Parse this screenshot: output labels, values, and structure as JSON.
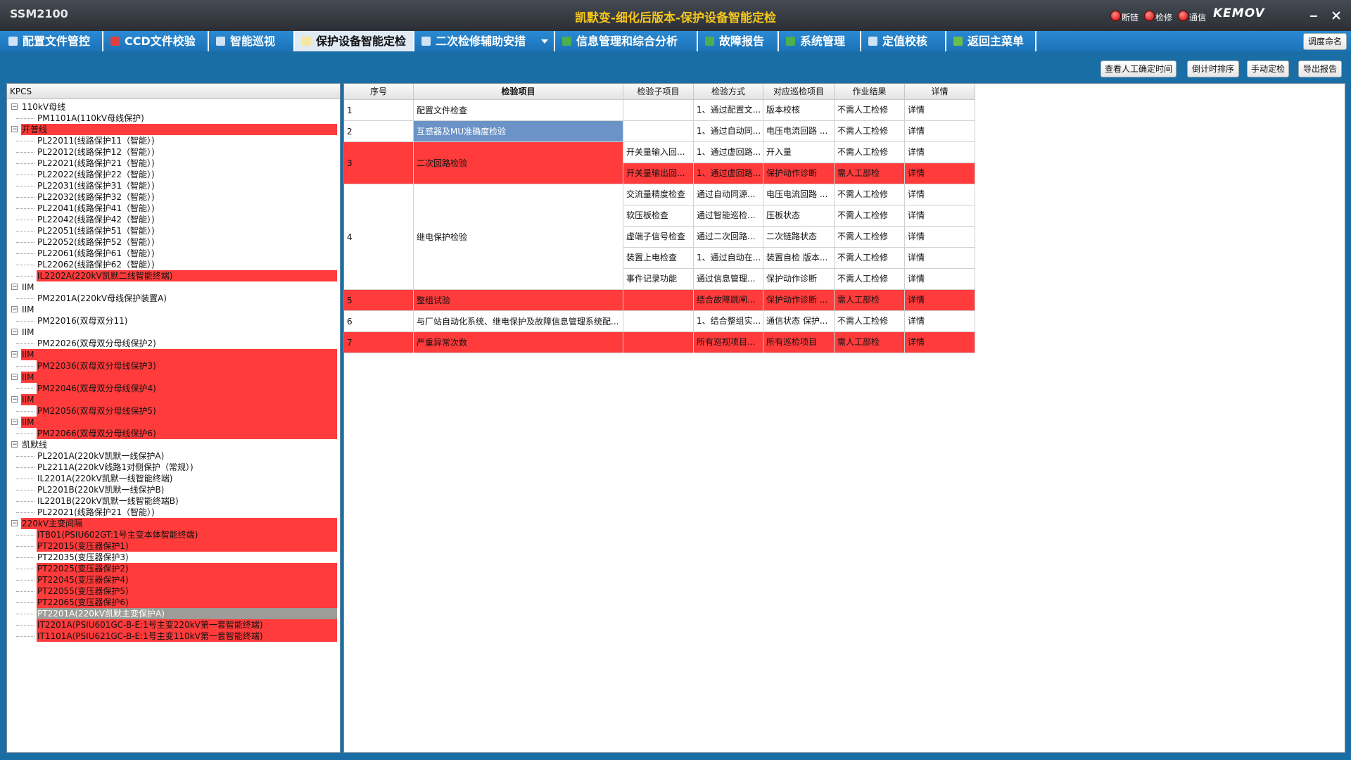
{
  "header": {
    "app_name": "SSM2100",
    "title": "凯默变-细化后版本-保护设备智能定检",
    "status": [
      "断链",
      "检修",
      "通信"
    ],
    "logo": "KEMOV"
  },
  "menu": {
    "items": [
      "配置文件管控",
      "CCD文件校验",
      "智能巡视",
      "保护设备智能定检",
      "二次检修辅助安措",
      "信息管理和综合分析",
      "故障报告",
      "系统管理",
      "定值校核",
      "返回主菜单"
    ],
    "active": 3,
    "right_button": "调度命名"
  },
  "toolbar": {
    "buttons": [
      "查看人工确定时间",
      "倒计时排序",
      "手动定检",
      "导出报告"
    ]
  },
  "tree": {
    "header": "KPCS",
    "nodes": [
      {
        "level": 0,
        "text": "110kV母线"
      },
      {
        "level": 1,
        "text": "PM1101A(110kV母线保护)"
      },
      {
        "level": 0,
        "text": "开普线",
        "alert": true
      },
      {
        "level": 1,
        "text": "PL22011(线路保护11（智能）)"
      },
      {
        "level": 1,
        "text": "PL22012(线路保护12（智能）)"
      },
      {
        "level": 1,
        "text": "PL22021(线路保护21（智能）)"
      },
      {
        "level": 1,
        "text": "PL22022(线路保护22（智能）)"
      },
      {
        "level": 1,
        "text": "PL22031(线路保护31（智能）)"
      },
      {
        "level": 1,
        "text": "PL22032(线路保护32（智能）)"
      },
      {
        "level": 1,
        "text": "PL22041(线路保护41（智能）)"
      },
      {
        "level": 1,
        "text": "PL22042(线路保护42（智能）)"
      },
      {
        "level": 1,
        "text": "PL22051(线路保护51（智能）)"
      },
      {
        "level": 1,
        "text": "PL22052(线路保护52（智能）)"
      },
      {
        "level": 1,
        "text": "PL22061(线路保护61（智能）)"
      },
      {
        "level": 1,
        "text": "PL22062(线路保护62（智能）)"
      },
      {
        "level": 1,
        "text": "IL2202A(220kV凯默二线智能终端)",
        "alert": true
      },
      {
        "level": 0,
        "text": "IIM"
      },
      {
        "level": 1,
        "text": "PM2201A(220kV母线保护装置A)"
      },
      {
        "level": 0,
        "text": "IIM"
      },
      {
        "level": 1,
        "text": "PM22016(双母双分11)"
      },
      {
        "level": 0,
        "text": "IIM"
      },
      {
        "level": 1,
        "text": "PM22026(双母双分母线保护2)"
      },
      {
        "level": 0,
        "text": "IIM",
        "alert": true
      },
      {
        "level": 1,
        "text": "PM22036(双母双分母线保护3)",
        "alert": true
      },
      {
        "level": 0,
        "text": "IIM",
        "alert": true
      },
      {
        "level": 1,
        "text": "PM22046(双母双分母线保护4)",
        "alert": true
      },
      {
        "level": 0,
        "text": "IIM",
        "alert": true
      },
      {
        "level": 1,
        "text": "PM22056(双母双分母线保护5)",
        "alert": true
      },
      {
        "level": 0,
        "text": "IIM",
        "alert": true
      },
      {
        "level": 1,
        "text": "PM22066(双母双分母线保护6)",
        "alert": true
      },
      {
        "level": 0,
        "text": "凯默线"
      },
      {
        "level": 1,
        "text": "PL2201A(220kV凯默一线保护A)"
      },
      {
        "level": 1,
        "text": "PL2211A(220kV线路1对侧保护（常规）)"
      },
      {
        "level": 1,
        "text": "IL2201A(220kV凯默一线智能终端)"
      },
      {
        "level": 1,
        "text": "PL2201B(220kV凯默一线保护B)"
      },
      {
        "level": 1,
        "text": "IL2201B(220kV凯默一线智能终端B)"
      },
      {
        "level": 1,
        "text": "PL22021(线路保护21（智能）)"
      },
      {
        "level": 0,
        "text": "220kV主变间隔",
        "alert": true
      },
      {
        "level": 1,
        "text": "ITB01(PSIU602GT:1号主变本体智能终端)",
        "alert": true
      },
      {
        "level": 1,
        "text": "PT22015(变压器保护1)",
        "alert": true
      },
      {
        "level": 1,
        "text": "PT22035(变压器保护3)"
      },
      {
        "level": 1,
        "text": "PT22025(变压器保护2)",
        "alert": true
      },
      {
        "level": 1,
        "text": "PT22045(变压器保护4)",
        "alert": true
      },
      {
        "level": 1,
        "text": "PT22055(变压器保护5)",
        "alert": true
      },
      {
        "level": 1,
        "text": "PT22065(变压器保护6)",
        "alert": true
      },
      {
        "level": 1,
        "text": "PT2201A(220kV凯默主变保护A)",
        "selected": true
      },
      {
        "level": 1,
        "text": "IT2201A(PSIU601GC-B-E:1号主变220kV第一套智能终端)",
        "alert": true
      },
      {
        "level": 1,
        "text": "IT1101A(PSIU621GC-B-E:1号主变110kV第一套智能终端)",
        "alert": true
      }
    ]
  },
  "table": {
    "columns": [
      "序号",
      "检验项目",
      "检验子项目",
      "检验方式",
      "对应巡检项目",
      "作业结果",
      "详情"
    ],
    "rows": [
      {
        "seq": "1",
        "item": "配置文件检查",
        "subs": [
          {
            "method": "1、通过配置文...",
            "patrol": "版本校核",
            "result": "不需人工检修",
            "detail": "详情"
          }
        ]
      },
      {
        "seq": "2",
        "item": "互感器及MU准确度检验",
        "selected": true,
        "subs": [
          {
            "method": "1、通过自动同...",
            "patrol": "电压电流回路 ...",
            "result": "不需人工检修",
            "detail": "详情"
          }
        ]
      },
      {
        "seq": "3",
        "item": "二次回路检验",
        "alert": true,
        "subs": [
          {
            "sub": "开关量输入回...",
            "method": "1、通过虚回路...",
            "patrol": "开入量",
            "result": "不需人工检修",
            "detail": "详情"
          },
          {
            "sub": "开关量输出回...",
            "method": "1、通过虚回路...",
            "patrol": "保护动作诊断",
            "result": "需人工部检",
            "detail": "详情",
            "alert": true
          }
        ]
      },
      {
        "seq": "4",
        "item": "继电保护检验",
        "subs": [
          {
            "sub": "交流量精度检查",
            "method": "通过自动同源...",
            "patrol": "电压电流回路 ...",
            "result": "不需人工检修",
            "detail": "详情"
          },
          {
            "sub": "软压板检查",
            "method": "通过智能巡检...",
            "patrol": "压板状态",
            "result": "不需人工检修",
            "detail": "详情"
          },
          {
            "sub": "虚端子信号检查",
            "method": "通过二次回路...",
            "patrol": "二次链路状态",
            "result": "不需人工检修",
            "detail": "详情"
          },
          {
            "sub": "装置上电检查",
            "method": "1、通过自动在...",
            "patrol": "装置自检 版本...",
            "result": "不需人工检修",
            "detail": "详情"
          },
          {
            "sub": "事件记录功能",
            "method": "通过信息管理...",
            "patrol": "保护动作诊断",
            "result": "不需人工检修",
            "detail": "详情"
          }
        ]
      },
      {
        "seq": "5",
        "item": "整组试验",
        "alert": true,
        "subs": [
          {
            "method": "结合故障跳闸...",
            "patrol": "保护动作诊断 ...",
            "result": "需人工部检",
            "detail": "详情",
            "alert": true
          }
        ]
      },
      {
        "seq": "6",
        "item": "与厂站自动化系统、继电保护及故障信息管理系统配...",
        "subs": [
          {
            "method": "1、结合整组实...",
            "patrol": "通信状态 保护...",
            "result": "不需人工检修",
            "detail": "详情"
          }
        ]
      },
      {
        "seq": "7",
        "item": "严重异常次数",
        "alert": true,
        "subs": [
          {
            "method": "所有巡视项目...",
            "patrol": "所有巡检项目",
            "result": "需人工部检",
            "detail": "详情",
            "alert": true
          }
        ]
      }
    ]
  }
}
